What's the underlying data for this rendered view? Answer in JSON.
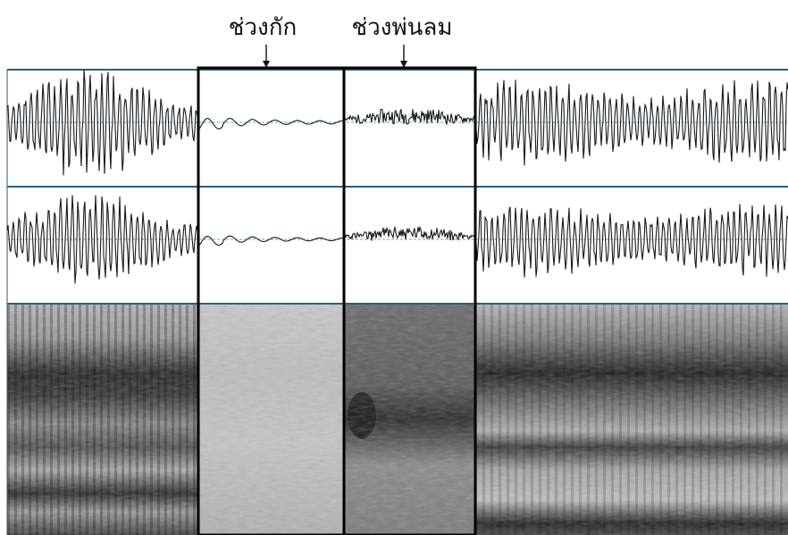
{
  "annotations": [
    {
      "id": "closure",
      "text": "ช่วงกัก"
    },
    {
      "id": "aspiration",
      "text": "ช่วงพ่นลม"
    }
  ],
  "colors": {
    "waveform": "#1a1a1a",
    "panel_line": "#2b5f7a",
    "zero_line": "#6fa3c8",
    "box": "#000000"
  }
}
